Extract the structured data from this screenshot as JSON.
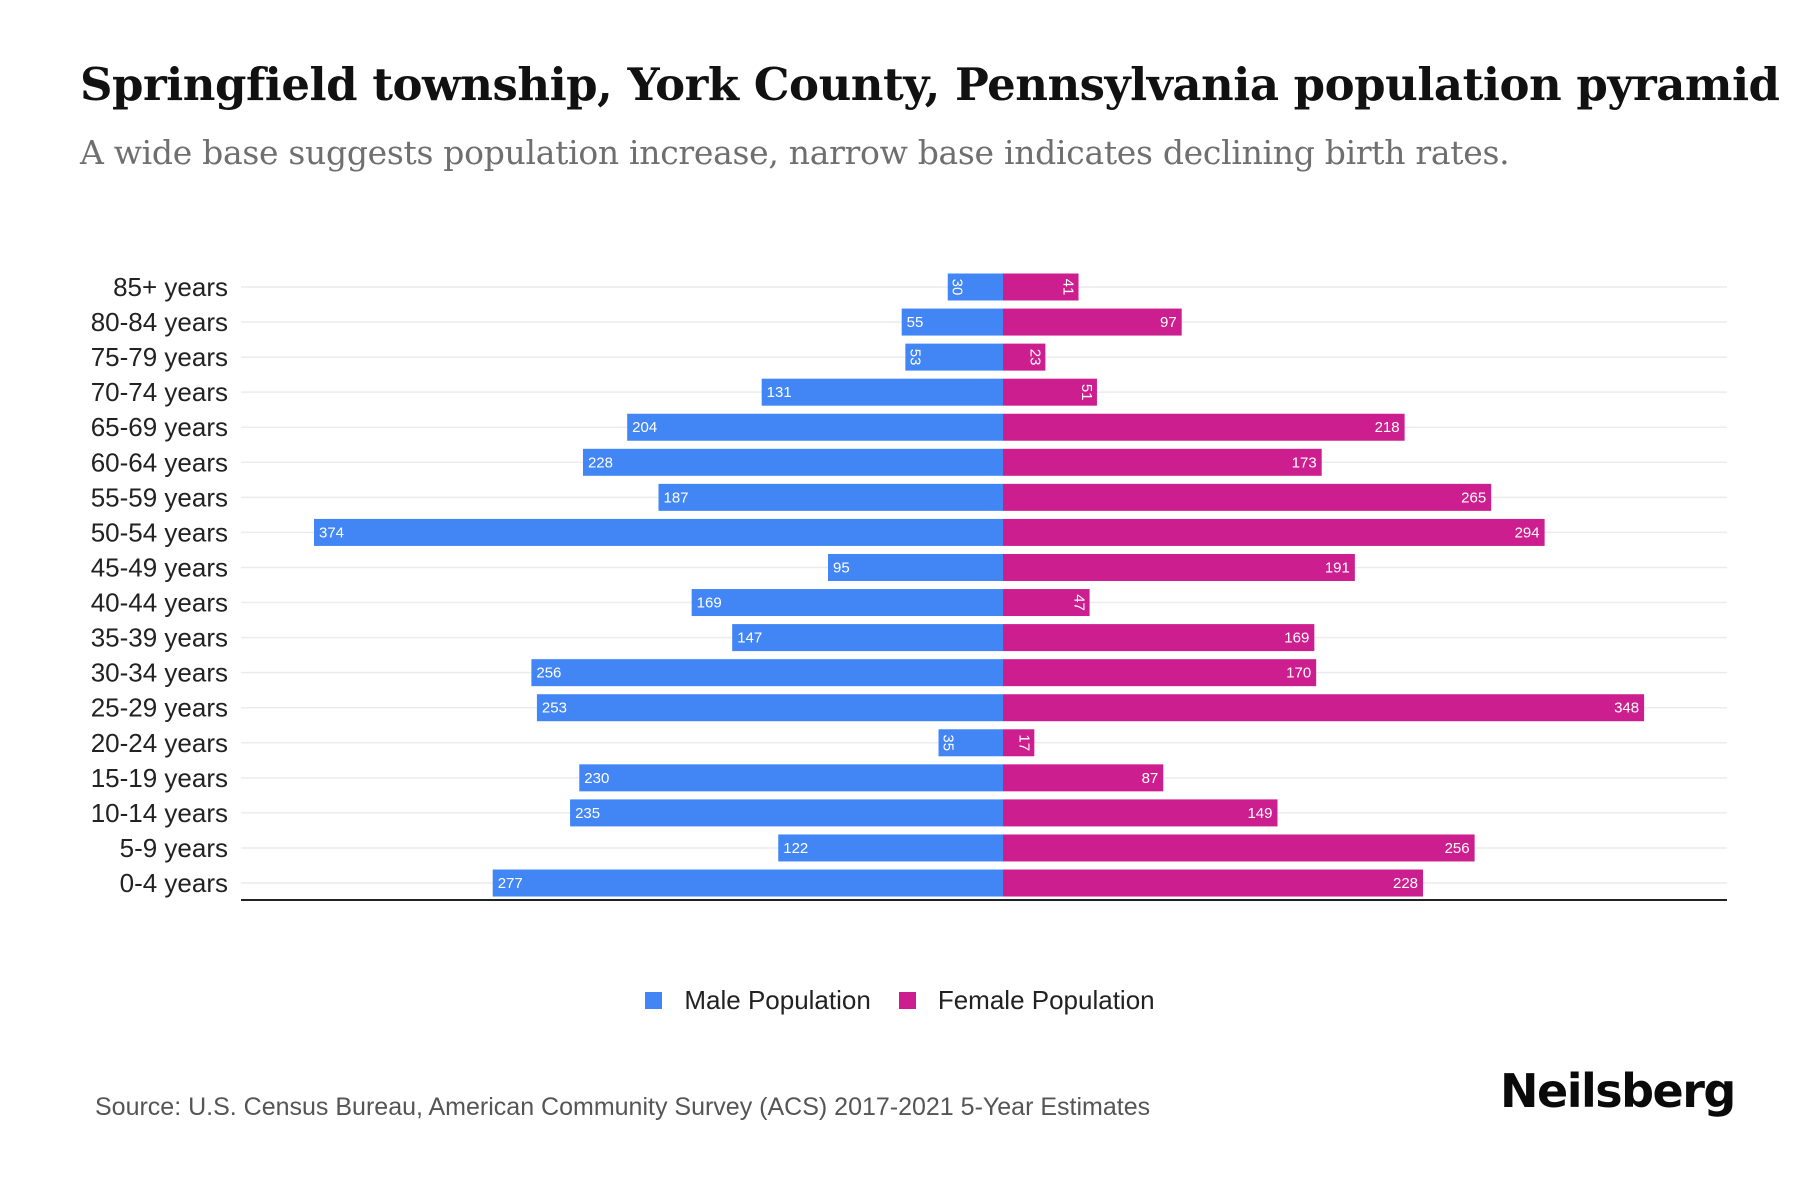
{
  "header": {
    "title": "Springfield township, York County, Pennsylvania population pyramid",
    "subtitle": "A wide base suggests population increase, narrow base indicates declining birth rates."
  },
  "legend": {
    "male_label": "Male Population",
    "female_label": "Female Population"
  },
  "footer": {
    "source": "Source: U.S. Census Bureau, American Community Survey (ACS) 2017-2021 5-Year Estimates",
    "brand": "Neilsberg"
  },
  "colors": {
    "male": "#4285f4",
    "female": "#cd1e8f",
    "grid": "#ececec",
    "axis": "#222222"
  },
  "chart_data": {
    "type": "bar",
    "orientation": "horizontal-diverging",
    "title": "Springfield township, York County, Pennsylvania population pyramid",
    "subtitle": "A wide base suggests population increase, narrow base indicates declining birth rates.",
    "xlabel": "",
    "ylabel": "",
    "grid": true,
    "legend_position": "bottom-center",
    "categories": [
      "85+ years",
      "80-84 years",
      "75-79 years",
      "70-74 years",
      "65-69 years",
      "60-64 years",
      "55-59 years",
      "50-54 years",
      "45-49 years",
      "40-44 years",
      "35-39 years",
      "30-34 years",
      "25-29 years",
      "20-24 years",
      "15-19 years",
      "10-14 years",
      "5-9 years",
      "0-4 years"
    ],
    "series": [
      {
        "name": "Male Population",
        "side": "left",
        "values": [
          30,
          55,
          53,
          131,
          204,
          228,
          187,
          374,
          95,
          169,
          147,
          256,
          253,
          35,
          230,
          235,
          122,
          277
        ]
      },
      {
        "name": "Female Population",
        "side": "right",
        "values": [
          41,
          97,
          23,
          51,
          218,
          173,
          265,
          294,
          191,
          47,
          169,
          170,
          348,
          17,
          87,
          149,
          256,
          228
        ]
      }
    ],
    "xlim": [
      -374,
      374
    ]
  }
}
